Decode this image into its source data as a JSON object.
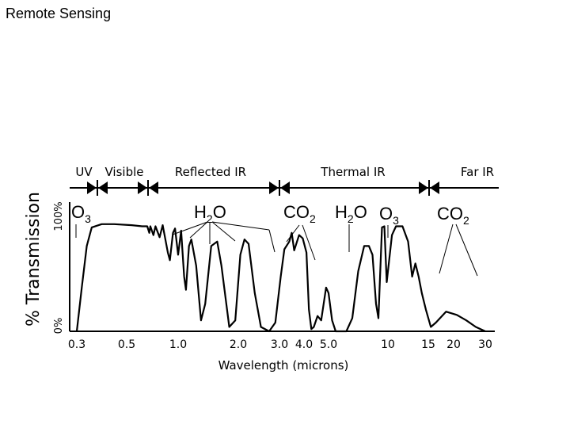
{
  "page": {
    "title": "Remote Sensing"
  },
  "chart_data": {
    "type": "line",
    "title": "",
    "xlabel": "Wavelength (microns)",
    "ylabel": "% Transmission",
    "y_tick_labels": [
      "0%",
      "100%"
    ],
    "ylim": [
      0,
      100
    ],
    "x_tick_labels": [
      "0.3",
      "0.5",
      "1.0",
      "2.0",
      "3.0",
      "4.0",
      "5.0",
      "10",
      "15",
      "20",
      "30"
    ],
    "regions": [
      {
        "label": "UV",
        "x_start": "0.3",
        "x_end": "0.4"
      },
      {
        "label": "Visible",
        "x_start": "0.4",
        "x_end": "0.7"
      },
      {
        "label": "Reflected IR",
        "x_start": "0.7",
        "x_end": "3.0"
      },
      {
        "label": "Thermal IR",
        "x_start": "3.0",
        "x_end": "15"
      },
      {
        "label": "Far IR",
        "x_start": "15",
        "x_end": "30"
      }
    ],
    "absorption_labels": [
      {
        "gas": "O",
        "sub": "3",
        "near": "0.3"
      },
      {
        "gas": "H",
        "sub": "2",
        "tail": "O",
        "near": "1.0-2.5"
      },
      {
        "gas": "CO",
        "sub": "2",
        "near": "2.7-4.3"
      },
      {
        "gas": "H",
        "sub": "2",
        "tail": "O",
        "near": "6.0"
      },
      {
        "gas": "O",
        "sub": "3",
        "near": "9.6"
      },
      {
        "gas": "CO",
        "sub": "2",
        "near": "15"
      }
    ],
    "series": [
      {
        "values": [
          [
            0.3,
            0
          ],
          [
            0.32,
            40
          ],
          [
            0.34,
            78
          ],
          [
            0.36,
            95
          ],
          [
            0.4,
            98
          ],
          [
            0.45,
            98
          ],
          [
            0.55,
            97
          ],
          [
            0.65,
            96
          ],
          [
            0.7,
            96
          ],
          [
            0.72,
            90
          ],
          [
            0.73,
            96
          ],
          [
            0.76,
            88
          ],
          [
            0.78,
            96
          ],
          [
            0.82,
            86
          ],
          [
            0.85,
            97
          ],
          [
            0.9,
            72
          ],
          [
            0.92,
            65
          ],
          [
            0.95,
            90
          ],
          [
            0.97,
            94
          ],
          [
            1.0,
            70
          ],
          [
            1.05,
            92
          ],
          [
            1.1,
            50
          ],
          [
            1.13,
            38
          ],
          [
            1.18,
            78
          ],
          [
            1.22,
            84
          ],
          [
            1.3,
            60
          ],
          [
            1.38,
            10
          ],
          [
            1.45,
            25
          ],
          [
            1.55,
            78
          ],
          [
            1.65,
            82
          ],
          [
            1.72,
            60
          ],
          [
            1.85,
            4
          ],
          [
            1.95,
            10
          ],
          [
            2.05,
            70
          ],
          [
            2.15,
            84
          ],
          [
            2.25,
            80
          ],
          [
            2.4,
            35
          ],
          [
            2.55,
            4
          ],
          [
            2.75,
            0
          ],
          [
            2.9,
            8
          ],
          [
            3.05,
            50
          ],
          [
            3.2,
            75
          ],
          [
            3.4,
            82
          ],
          [
            3.5,
            90
          ],
          [
            3.6,
            74
          ],
          [
            3.8,
            88
          ],
          [
            3.95,
            85
          ],
          [
            4.1,
            72
          ],
          [
            4.2,
            20
          ],
          [
            4.3,
            2
          ],
          [
            4.4,
            4
          ],
          [
            4.55,
            14
          ],
          [
            4.7,
            10
          ],
          [
            4.8,
            25
          ],
          [
            4.9,
            40
          ],
          [
            5.0,
            35
          ],
          [
            5.3,
            10
          ],
          [
            5.6,
            0
          ],
          [
            6.5,
            0
          ],
          [
            7.0,
            12
          ],
          [
            7.5,
            55
          ],
          [
            8.0,
            78
          ],
          [
            8.4,
            78
          ],
          [
            8.7,
            70
          ],
          [
            9.0,
            25
          ],
          [
            9.2,
            12
          ],
          [
            9.5,
            95
          ],
          [
            9.7,
            96
          ],
          [
            9.9,
            45
          ],
          [
            10.5,
            88
          ],
          [
            11.0,
            96
          ],
          [
            11.8,
            96
          ],
          [
            12.5,
            82
          ],
          [
            13.0,
            50
          ],
          [
            13.4,
            62
          ],
          [
            13.8,
            50
          ],
          [
            14.2,
            35
          ],
          [
            14.7,
            20
          ],
          [
            15.5,
            4
          ],
          [
            16.5,
            8
          ],
          [
            18.5,
            18
          ],
          [
            21.0,
            15
          ],
          [
            24.0,
            10
          ],
          [
            27.0,
            4
          ],
          [
            30.0,
            0
          ]
        ]
      }
    ],
    "grid": false,
    "legend": "none"
  }
}
